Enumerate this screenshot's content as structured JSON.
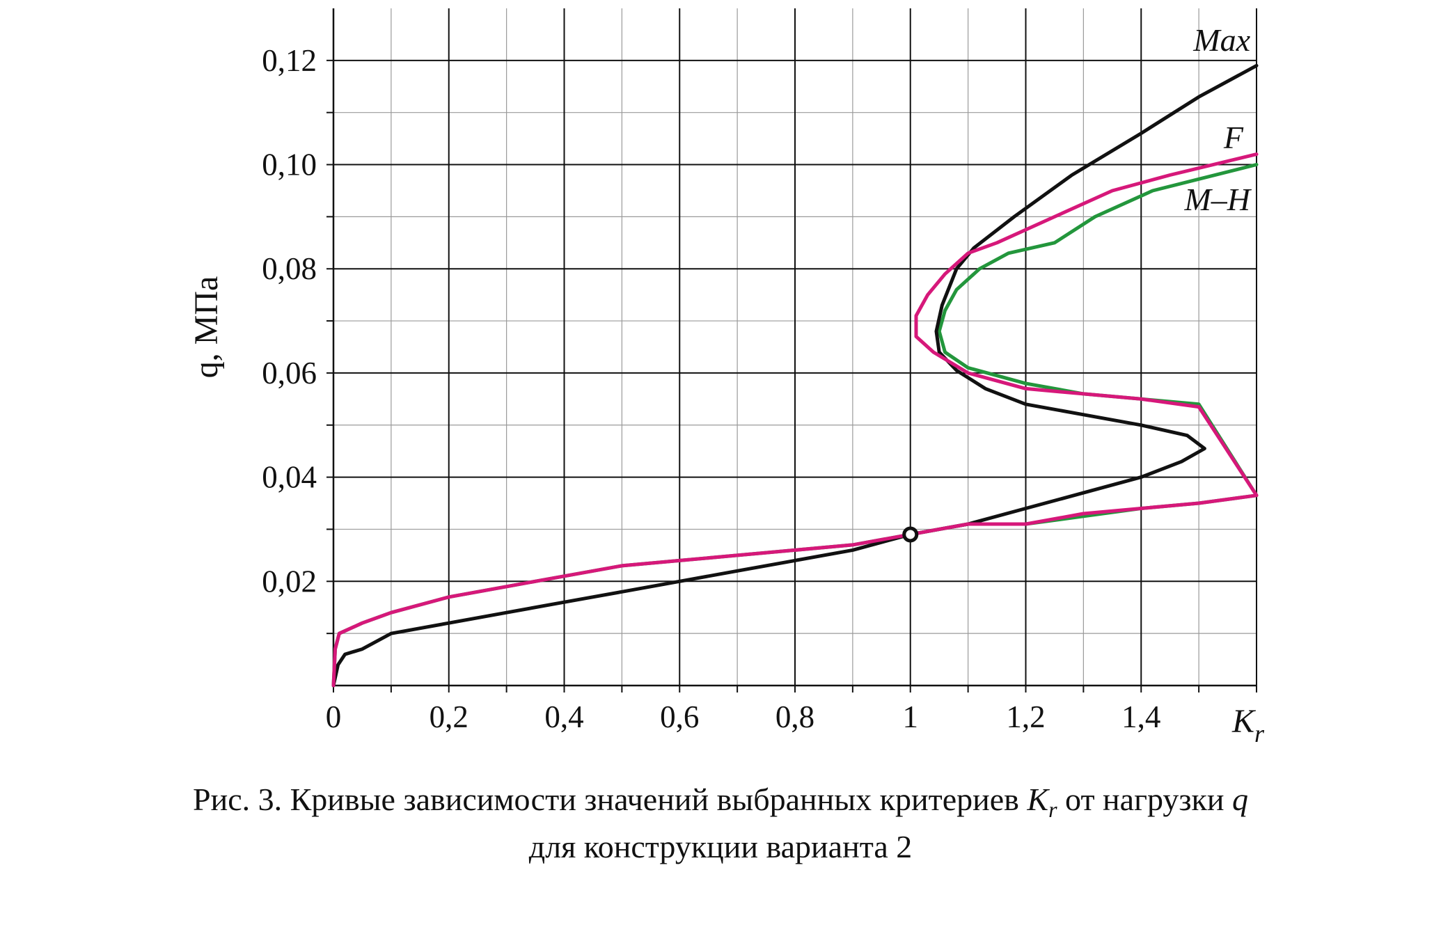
{
  "chart_data": {
    "type": "line",
    "xlabel": "K",
    "xlabel_sub": "r",
    "ylabel": "q, МПа",
    "xlim": [
      0,
      1.6
    ],
    "ylim": [
      0,
      0.13
    ],
    "x_ticks": [
      {
        "value": 0,
        "label": "0"
      },
      {
        "value": 0.2,
        "label": "0,2"
      },
      {
        "value": 0.4,
        "label": "0,4"
      },
      {
        "value": 0.6,
        "label": "0,6"
      },
      {
        "value": 0.8,
        "label": "0,8"
      },
      {
        "value": 1.0,
        "label": "1"
      },
      {
        "value": 1.2,
        "label": "1,2"
      },
      {
        "value": 1.4,
        "label": "1,4"
      }
    ],
    "y_ticks": [
      {
        "value": 0.02,
        "label": "0,02"
      },
      {
        "value": 0.04,
        "label": "0,04"
      },
      {
        "value": 0.06,
        "label": "0,06"
      },
      {
        "value": 0.08,
        "label": "0,08"
      },
      {
        "value": 0.1,
        "label": "0,10"
      },
      {
        "value": 0.12,
        "label": "0,12"
      }
    ],
    "grid": true,
    "series": [
      {
        "name": "Max",
        "color": "#111111",
        "points": [
          [
            0,
            0
          ],
          [
            0.008,
            0.004
          ],
          [
            0.02,
            0.006
          ],
          [
            0.05,
            0.007
          ],
          [
            0.1,
            0.01
          ],
          [
            0.2,
            0.012
          ],
          [
            0.3,
            0.014
          ],
          [
            0.4,
            0.016
          ],
          [
            0.5,
            0.018
          ],
          [
            0.6,
            0.02
          ],
          [
            0.7,
            0.022
          ],
          [
            0.8,
            0.024
          ],
          [
            0.9,
            0.026
          ],
          [
            1.0,
            0.029
          ],
          [
            1.1,
            0.031
          ],
          [
            1.2,
            0.034
          ],
          [
            1.3,
            0.037
          ],
          [
            1.4,
            0.04
          ],
          [
            1.47,
            0.043
          ],
          [
            1.51,
            0.0455
          ],
          [
            1.48,
            0.048
          ],
          [
            1.4,
            0.05
          ],
          [
            1.3,
            0.052
          ],
          [
            1.2,
            0.054
          ],
          [
            1.13,
            0.057
          ],
          [
            1.08,
            0.0605
          ],
          [
            1.05,
            0.064
          ],
          [
            1.045,
            0.068
          ],
          [
            1.055,
            0.073
          ],
          [
            1.08,
            0.08
          ],
          [
            1.11,
            0.084
          ],
          [
            1.18,
            0.09
          ],
          [
            1.28,
            0.098
          ],
          [
            1.4,
            0.106
          ],
          [
            1.5,
            0.113
          ],
          [
            1.6,
            0.119
          ]
        ]
      },
      {
        "name": "F",
        "color": "#d6187a",
        "points": [
          [
            0,
            0
          ],
          [
            0.003,
            0.007
          ],
          [
            0.01,
            0.01
          ],
          [
            0.05,
            0.012
          ],
          [
            0.1,
            0.014
          ],
          [
            0.2,
            0.017
          ],
          [
            0.3,
            0.019
          ],
          [
            0.4,
            0.021
          ],
          [
            0.5,
            0.023
          ],
          [
            0.6,
            0.024
          ],
          [
            0.7,
            0.025
          ],
          [
            0.8,
            0.026
          ],
          [
            0.9,
            0.027
          ],
          [
            1.0,
            0.029
          ],
          [
            1.1,
            0.031
          ],
          [
            1.2,
            0.031
          ],
          [
            1.3,
            0.033
          ],
          [
            1.4,
            0.034
          ],
          [
            1.5,
            0.035
          ],
          [
            1.6,
            0.0365
          ],
          [
            1.5,
            0.0535
          ],
          [
            1.4,
            0.055
          ],
          [
            1.3,
            0.056
          ],
          [
            1.2,
            0.057
          ],
          [
            1.1,
            0.06
          ],
          [
            1.04,
            0.064
          ],
          [
            1.01,
            0.067
          ],
          [
            1.01,
            0.071
          ],
          [
            1.03,
            0.075
          ],
          [
            1.06,
            0.079
          ],
          [
            1.1,
            0.083
          ],
          [
            1.15,
            0.085
          ],
          [
            1.25,
            0.09
          ],
          [
            1.35,
            0.095
          ],
          [
            1.45,
            0.098
          ],
          [
            1.6,
            0.102
          ]
        ]
      },
      {
        "name": "M–H",
        "color": "#23963c",
        "points": [
          [
            0,
            0
          ],
          [
            0.003,
            0.007
          ],
          [
            0.01,
            0.01
          ],
          [
            0.05,
            0.012
          ],
          [
            0.1,
            0.014
          ],
          [
            0.2,
            0.017
          ],
          [
            0.3,
            0.019
          ],
          [
            0.4,
            0.021
          ],
          [
            0.5,
            0.023
          ],
          [
            0.6,
            0.024
          ],
          [
            0.7,
            0.025
          ],
          [
            0.8,
            0.026
          ],
          [
            0.9,
            0.027
          ],
          [
            1.0,
            0.029
          ],
          [
            1.1,
            0.031
          ],
          [
            1.2,
            0.031
          ],
          [
            1.3,
            0.0325
          ],
          [
            1.4,
            0.034
          ],
          [
            1.5,
            0.035
          ],
          [
            1.6,
            0.0365
          ],
          [
            1.5,
            0.054
          ],
          [
            1.4,
            0.055
          ],
          [
            1.3,
            0.056
          ],
          [
            1.2,
            0.058
          ],
          [
            1.1,
            0.061
          ],
          [
            1.06,
            0.064
          ],
          [
            1.05,
            0.068
          ],
          [
            1.06,
            0.072
          ],
          [
            1.08,
            0.076
          ],
          [
            1.12,
            0.08
          ],
          [
            1.17,
            0.083
          ],
          [
            1.25,
            0.085
          ],
          [
            1.32,
            0.09
          ],
          [
            1.42,
            0.095
          ],
          [
            1.6,
            0.1
          ]
        ]
      }
    ],
    "marker": {
      "x": 1.0,
      "y": 0.029
    }
  },
  "labels": {
    "max": "Max",
    "f": "F",
    "mh": "M–H"
  },
  "caption": {
    "line1_prefix": "Рис. 3. Кривые зависимости значений выбранных критериев ",
    "kr_main": "K",
    "kr_sub": "r",
    "line1_middle": " от нагрузки ",
    "q_symbol": "q",
    "line2": "для конструкции варианта 2"
  }
}
